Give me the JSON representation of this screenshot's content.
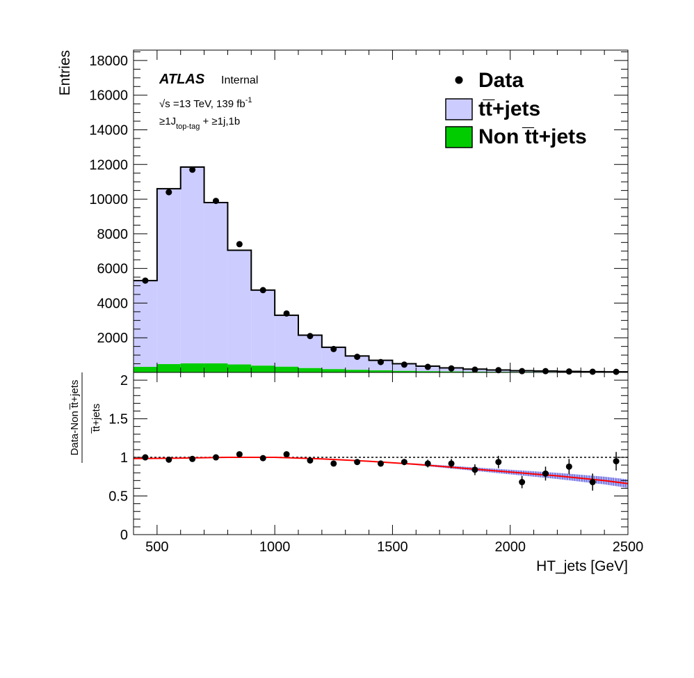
{
  "chart_data": [
    {
      "type": "bar",
      "panel": "main",
      "ylabel": "Entries",
      "xlim": [
        400,
        2500
      ],
      "ylim": [
        0,
        18600
      ],
      "yticks": [
        2000,
        4000,
        6000,
        8000,
        10000,
        12000,
        14000,
        16000,
        18000
      ],
      "bin_edges": [
        400,
        500,
        600,
        700,
        800,
        900,
        1000,
        1100,
        1200,
        1300,
        1400,
        1500,
        1600,
        1700,
        1800,
        1900,
        2000,
        2100,
        2200,
        2300,
        2400,
        2500
      ],
      "series": [
        {
          "name": "Non t̅t+jets",
          "color": "#00cc00",
          "values": [
            320,
            480,
            520,
            520,
            460,
            390,
            330,
            250,
            190,
            150,
            120,
            90,
            70,
            55,
            45,
            35,
            30,
            25,
            20,
            15,
            12
          ]
        },
        {
          "name": "tt̅+jets",
          "color": "#ccccff",
          "stack_totals": [
            5300,
            10600,
            11850,
            9800,
            7050,
            4750,
            3300,
            2150,
            1450,
            950,
            700,
            500,
            360,
            260,
            190,
            140,
            100,
            80,
            60,
            45,
            35
          ]
        },
        {
          "name": "Data",
          "type": "points",
          "x": [
            450,
            550,
            650,
            750,
            850,
            950,
            1050,
            1150,
            1250,
            1350,
            1450,
            1550,
            1650,
            1750,
            1850,
            1950,
            2050,
            2150,
            2250,
            2350,
            2450
          ],
          "values": [
            5300,
            10400,
            11700,
            9900,
            7400,
            4750,
            3400,
            2100,
            1350,
            900,
            600,
            450,
            320,
            230,
            160,
            130,
            75,
            75,
            55,
            40,
            35
          ]
        }
      ],
      "legend_position": "top-right",
      "annotations": {
        "experiment": "ATLAS",
        "status": "Internal",
        "energy": "√s =13 TeV, 139 fb",
        "energy_sup": "-1",
        "selection_a": "≥1J",
        "selection_sub": "top-tag",
        "selection_b": " + ≥1j,1b"
      }
    },
    {
      "type": "scatter",
      "panel": "ratio",
      "ylabel_num": "Data-Non t̅t+jets",
      "ylabel_den": "t̅t+jets",
      "xlabel": "HT_jets [GeV]",
      "xlim": [
        400,
        2500
      ],
      "ylim": [
        0,
        2.1
      ],
      "xticks": [
        500,
        1000,
        1500,
        2000,
        2500
      ],
      "yticks": [
        0,
        0.5,
        1,
        1.5,
        2
      ],
      "reference_line": 1,
      "points": {
        "x": [
          450,
          550,
          650,
          750,
          850,
          950,
          1050,
          1150,
          1250,
          1350,
          1450,
          1550,
          1650,
          1750,
          1850,
          1950,
          2050,
          2150,
          2250,
          2350,
          2450
        ],
        "y": [
          1.0,
          0.97,
          0.98,
          1.0,
          1.04,
          0.99,
          1.04,
          0.96,
          0.92,
          0.94,
          0.92,
          0.94,
          0.92,
          0.92,
          0.84,
          0.94,
          0.68,
          0.79,
          0.88,
          0.68,
          0.95
        ],
        "err": [
          0.01,
          0.01,
          0.01,
          0.01,
          0.01,
          0.01,
          0.02,
          0.02,
          0.03,
          0.03,
          0.04,
          0.04,
          0.05,
          0.06,
          0.07,
          0.08,
          0.08,
          0.09,
          0.1,
          0.11,
          0.12
        ]
      },
      "fit": {
        "color": "#ff0000",
        "x": [
          400,
          600,
          800,
          1000,
          1200,
          1400,
          1600,
          1800,
          2000,
          2200,
          2400,
          2500
        ],
        "y": [
          0.985,
          0.99,
          1.0,
          1.0,
          0.98,
          0.95,
          0.91,
          0.86,
          0.81,
          0.76,
          0.7,
          0.66
        ]
      },
      "band_color": "#0000cc"
    }
  ]
}
